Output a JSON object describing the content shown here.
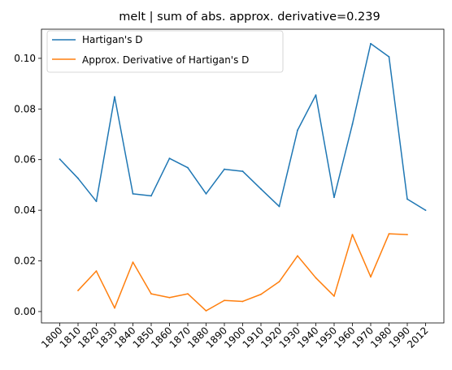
{
  "chart_data": {
    "type": "line",
    "title": "melt | sum of  abs. approx. derivative=0.239",
    "xlabel": "",
    "ylabel": "",
    "categories": [
      "1800",
      "1810",
      "1820",
      "1830",
      "1840",
      "1850",
      "1860",
      "1870",
      "1880",
      "1890",
      "1900",
      "1910",
      "1920",
      "1930",
      "1940",
      "1950",
      "1960",
      "1970",
      "1980",
      "1990",
      "2012"
    ],
    "ylim": [
      -0.0045,
      0.1115
    ],
    "yticks": [
      0.0,
      0.02,
      0.04,
      0.06,
      0.08,
      0.1
    ],
    "ytick_labels": [
      "0.00",
      "0.02",
      "0.04",
      "0.06",
      "0.08",
      "0.10"
    ],
    "grid": false,
    "legend_position": "top-left",
    "series": [
      {
        "name": "Hartigan's D",
        "color": "#1f77b4",
        "values": [
          0.0602,
          0.0526,
          0.0435,
          0.0848,
          0.0465,
          0.0457,
          0.0605,
          0.0568,
          0.0465,
          0.0562,
          0.0554,
          0.0484,
          0.0415,
          0.0716,
          0.0855,
          0.0451,
          0.074,
          0.1058,
          0.1006,
          0.0444,
          0.04
        ]
      },
      {
        "name": "Approx. Derivative of Hartigan's D",
        "color": "#ff7f0e",
        "values": [
          null,
          0.0083,
          0.016,
          0.0014,
          0.0195,
          0.007,
          0.0055,
          0.007,
          0.0003,
          0.0044,
          0.004,
          0.0068,
          0.0118,
          0.022,
          0.0133,
          0.0061,
          0.0304,
          0.0137,
          0.0307,
          0.0304,
          null
        ]
      }
    ]
  }
}
